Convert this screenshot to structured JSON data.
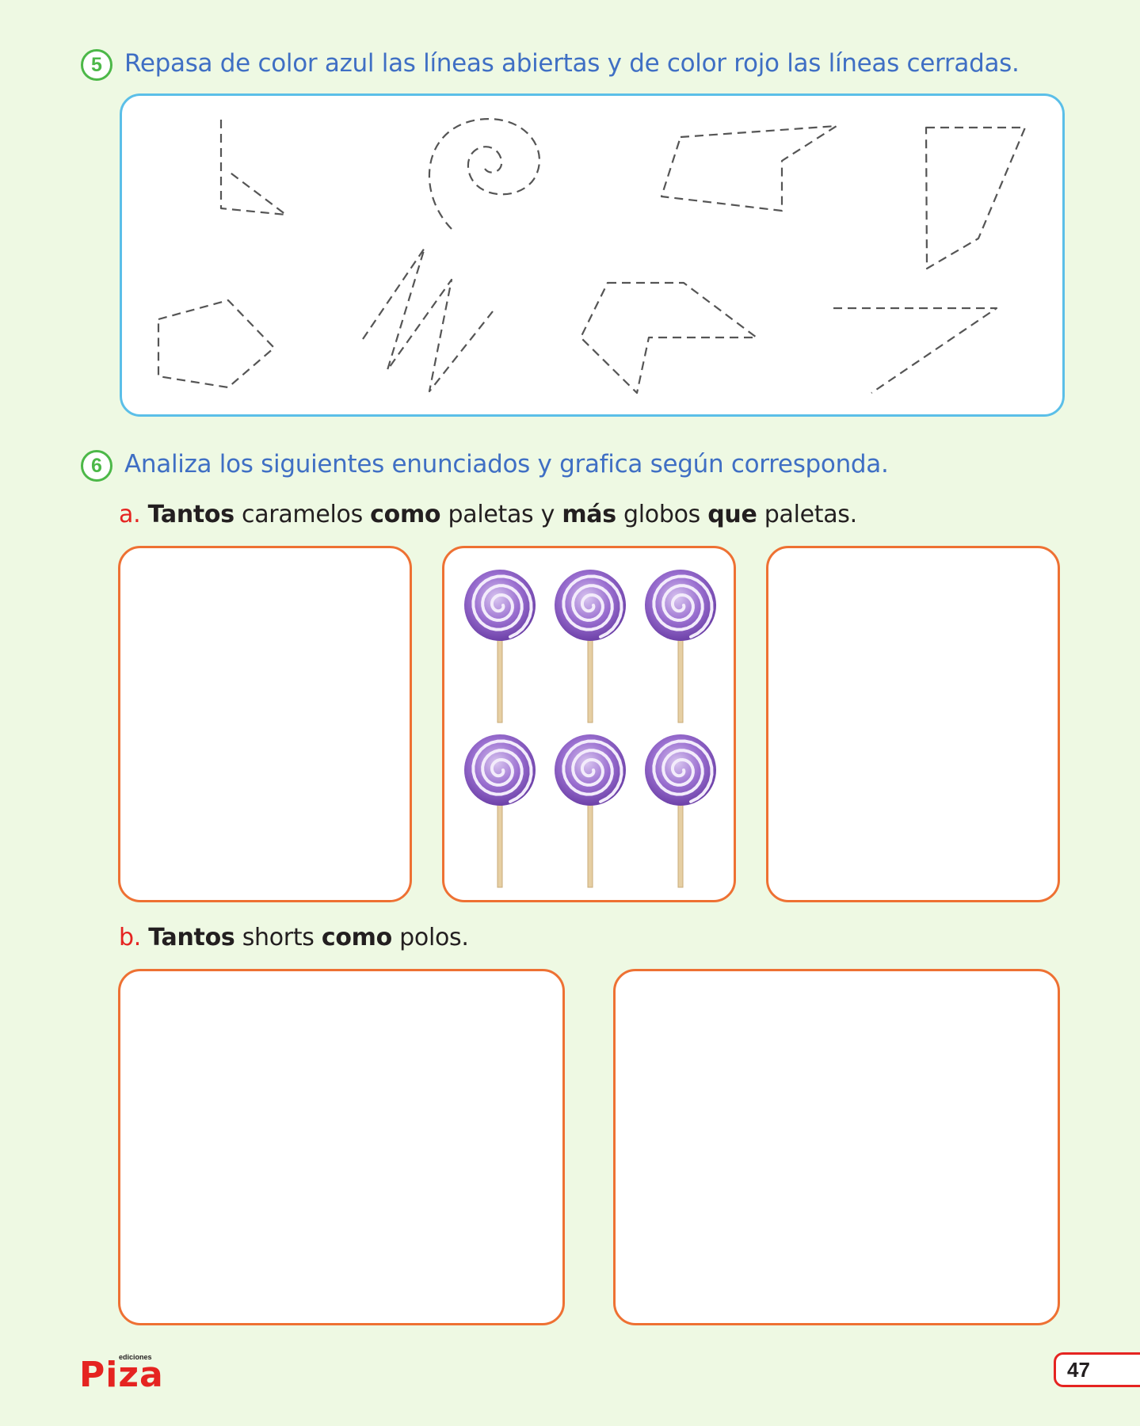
{
  "exercise5": {
    "number": "5",
    "instruction": "Repasa de color azul las líneas abiertas y de color rojo las líneas cerradas."
  },
  "exercise6": {
    "number": "6",
    "instruction": "Analiza los siguientes enunciados y grafica según corresponda.",
    "item_a": {
      "letter": "a.",
      "w1": "Tantos",
      "t1": " caramelos ",
      "w2": "como",
      "t2": " paletas y ",
      "w3": "más",
      "t3": " globos ",
      "w4": "que",
      "t4": " paletas."
    },
    "item_b": {
      "letter": "b.",
      "w1": "Tantos",
      "t1": " shorts ",
      "w2": "como",
      "t2": " polos."
    },
    "lollipop_count": 6
  },
  "footer": {
    "logo_small": "ediciones",
    "logo_main": "Piza",
    "page_number": "47"
  },
  "colors": {
    "background": "#eef9e3",
    "instruction_text": "#3f6fc4",
    "badge_green": "#4cb848",
    "box_orange": "#ee7133",
    "box_blue": "#5bbfe8",
    "letter_red": "#e52421",
    "lollipop_purple": "#8a5fbf"
  }
}
